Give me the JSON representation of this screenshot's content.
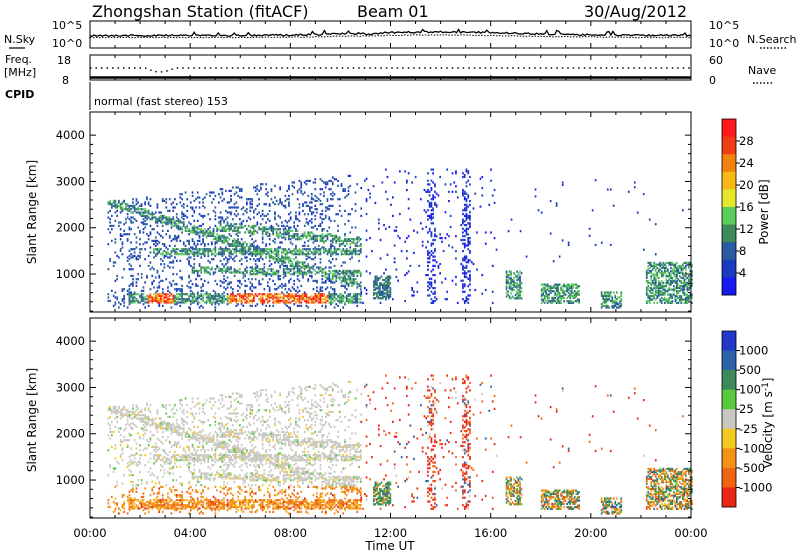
{
  "header": {
    "station": "Zhongshan Station (fitACF)",
    "beam": "Beam 01",
    "date": "30/Aug/2012"
  },
  "noise_panel": {
    "left_label": "N.Sky",
    "right_label": "N.Search",
    "left_ticks": [
      "10^5",
      "10^0"
    ],
    "right_ticks": [
      "10^5",
      "10^0"
    ]
  },
  "freq_panel": {
    "left_label_1": "Freq.",
    "left_label_2": "[MHz]",
    "right_label": "Nave",
    "left_ticks": [
      "18",
      "8"
    ],
    "right_ticks": [
      "60",
      "0"
    ]
  },
  "cpid": {
    "label": "CPID",
    "mode": "normal (fast stereo) 153"
  },
  "x_axis": {
    "label": "Time UT",
    "ticks": [
      "00:00",
      "04:00",
      "08:00",
      "12:00",
      "16:00",
      "20:00",
      "00:00"
    ]
  },
  "chart_data": [
    {
      "type": "heatmap",
      "title": "",
      "xlabel": "",
      "ylabel": "Slant Range [km]",
      "x_range_hours": [
        0,
        24
      ],
      "ylim": [
        180,
        4500
      ],
      "yticks": [
        "4000",
        "3000",
        "2000",
        "1000"
      ],
      "colorbar_label": "Power [dB]",
      "colorbar_ticks": [
        "28",
        "24",
        "20",
        "16",
        "12",
        "8",
        "4"
      ],
      "colorbar_colors": [
        "#ff1a1a",
        "#f03c14",
        "#f3830f",
        "#f9b814",
        "#e6e62a",
        "#5acb5a",
        "#3d8a5a",
        "#2a5aa0",
        "#1a3ac0",
        "#1818f0"
      ],
      "echo_regions": [
        {
          "t0": 0.7,
          "t1": 10.8,
          "r0": 250,
          "r1": 3300,
          "dominant": "weak, with strong bands"
        },
        {
          "t0": 10.8,
          "t1": 16.2,
          "r0": 400,
          "r1": 3300,
          "dominant": "sparse weak"
        },
        {
          "t0": 16.5,
          "t1": 21.5,
          "r0": 300,
          "r1": 1200,
          "dominant": "moderate"
        },
        {
          "t0": 22.0,
          "t1": 24.0,
          "r0": 300,
          "r1": 1300,
          "dominant": "moderate"
        }
      ]
    },
    {
      "type": "heatmap",
      "title": "",
      "xlabel": "Time UT",
      "ylabel": "Slant Range [km]",
      "x_range_hours": [
        0,
        24
      ],
      "ylim": [
        180,
        4500
      ],
      "yticks": [
        "4000",
        "3000",
        "2000",
        "1000"
      ],
      "colorbar_label": "Velocity [m s^-1]",
      "colorbar_ticks": [
        "1000",
        "500",
        "100",
        "25",
        "-25",
        "-100",
        "-500",
        "-1000"
      ],
      "colorbar_colors": [
        "#2238c8",
        "#2c62a8",
        "#3c8a5a",
        "#5ac83c",
        "#c8c8c0",
        "#f5c81e",
        "#f39214",
        "#f06414",
        "#e82814"
      ],
      "echo_regions": [
        {
          "t0": 0.7,
          "t1": 10.8,
          "r0": 250,
          "r1": 3300,
          "dominant": "ground scatter grey, orange low ranges"
        },
        {
          "t0": 10.8,
          "t1": 16.2,
          "r0": 400,
          "r1": 3300,
          "dominant": "sparse red"
        },
        {
          "t0": 16.5,
          "t1": 21.5,
          "r0": 300,
          "r1": 1200,
          "dominant": "orange / green"
        },
        {
          "t0": 22.0,
          "t1": 24.0,
          "r0": 300,
          "r1": 1300,
          "dominant": "green / orange"
        }
      ]
    }
  ]
}
